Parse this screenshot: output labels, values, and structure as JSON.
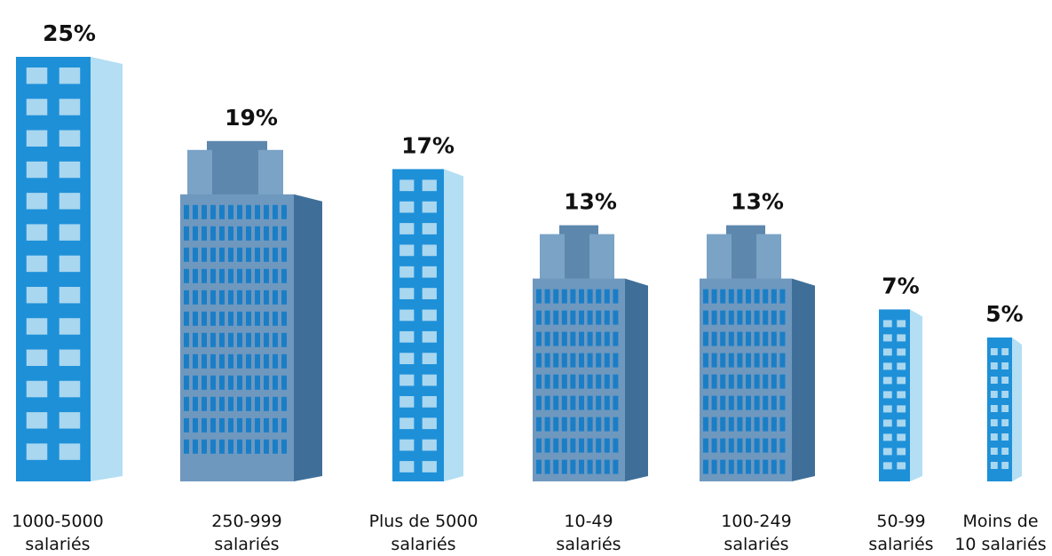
{
  "chart_data": {
    "type": "bar",
    "categories": [
      "1000-5000 salariés",
      "250-999 salariés",
      "Plus de 5000 salariés",
      "10-49 salariés",
      "100-249 salariés",
      "50-99 salariés",
      "Moins de 10 salariés"
    ],
    "values": [
      25,
      19,
      17,
      13,
      13,
      7,
      5
    ],
    "value_labels": [
      "25%",
      "19%",
      "17%",
      "13%",
      "13%",
      "7%",
      "5%"
    ],
    "colors": [
      "#1e90d8",
      "#6f98be",
      "#1e90d8",
      "#6f98be",
      "#6f98be",
      "#1e90d8",
      "#1e90d8"
    ]
  }
}
